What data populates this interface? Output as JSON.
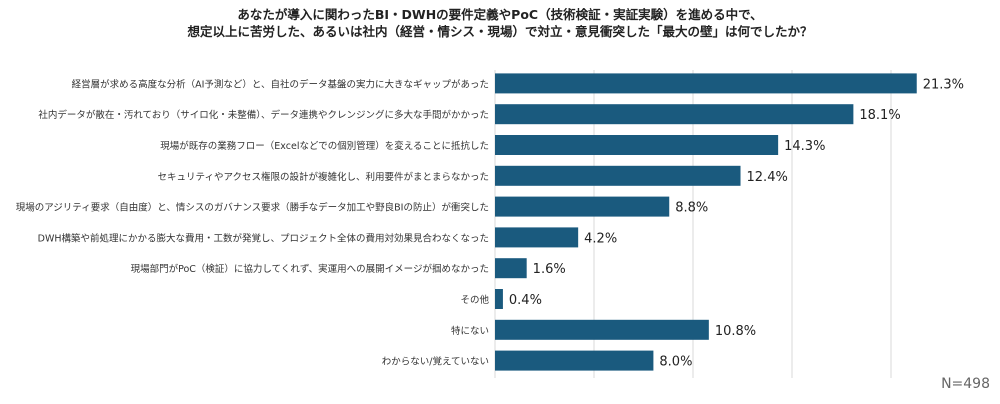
{
  "chart_data": {
    "type": "bar",
    "orientation": "horizontal",
    "title_lines": [
      "あなたが導入に関わったBI・DWHの要件定義やPoC（技術検証・実証実験）を進める中で、",
      "想定以上に苦労した、あるいは社内（経営・情シス・現場）で対立・意見衝突した「最大の壁」は何でしたか？"
    ],
    "categories": [
      "経営層が求める高度な分析（AI予測など）と、自社のデータ基盤の実力に大きなギャップがあった",
      "社内データが散在・汚れており（サイロ化・未整備）、データ連携やクレンジングに多大な手間がかかった",
      "現場が既存の業務フロー（Excelなどでの個別管理）を変えることに抵抗した",
      "セキュリティやアクセス権限の設計が複雑化し、利用要件がまとまらなかった",
      "現場のアジリティ要求（自由度）と、情シスのガバナンス要求（勝手なデータ加工や野良BIの防止）が衝突した",
      "DWH構築や前処理にかかる膨大な費用・工数が発覚し、プロジェクト全体の費用対効果見合わなくなった",
      "現場部門がPoC（検証）に協力してくれず、実運用への展開イメージが掴めなかった",
      "その他",
      "特にない",
      "わからない/覚えていない"
    ],
    "values": [
      21.3,
      18.1,
      14.3,
      12.4,
      8.8,
      4.2,
      1.6,
      0.4,
      10.8,
      8.0
    ],
    "value_labels": [
      "21.3%",
      "18.1%",
      "14.3%",
      "12.4%",
      "8.8%",
      "4.2%",
      "1.6%",
      "0.4%",
      "10.8%",
      "8.0%"
    ],
    "xlim": [
      0,
      25
    ],
    "grid": "vertical",
    "bar_color": "#1a5a7e",
    "grid_color": "#d9d9d9",
    "sample_size": "N=498"
  }
}
